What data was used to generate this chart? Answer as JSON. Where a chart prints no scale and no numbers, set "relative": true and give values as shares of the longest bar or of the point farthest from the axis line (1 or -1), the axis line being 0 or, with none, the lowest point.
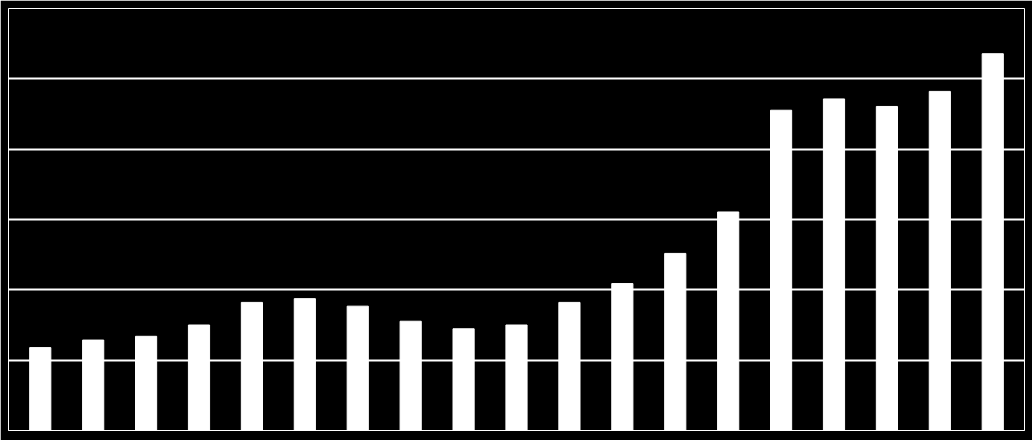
{
  "chart_data": {
    "type": "bar",
    "relative": true,
    "grid": "y",
    "categories": [
      null,
      null,
      null,
      null,
      null,
      null,
      null,
      null,
      null,
      null,
      null,
      null,
      null,
      null,
      null,
      null,
      null,
      null,
      null
    ],
    "series": [
      {
        "color": "#ffffff",
        "values": [
          0.22,
          0.24,
          0.25,
          0.28,
          0.34,
          0.35,
          0.33,
          0.29,
          0.27,
          0.28,
          0.34,
          0.39,
          0.47,
          0.58,
          0.85,
          0.88,
          0.86,
          0.9,
          1.0
        ]
      }
    ]
  }
}
